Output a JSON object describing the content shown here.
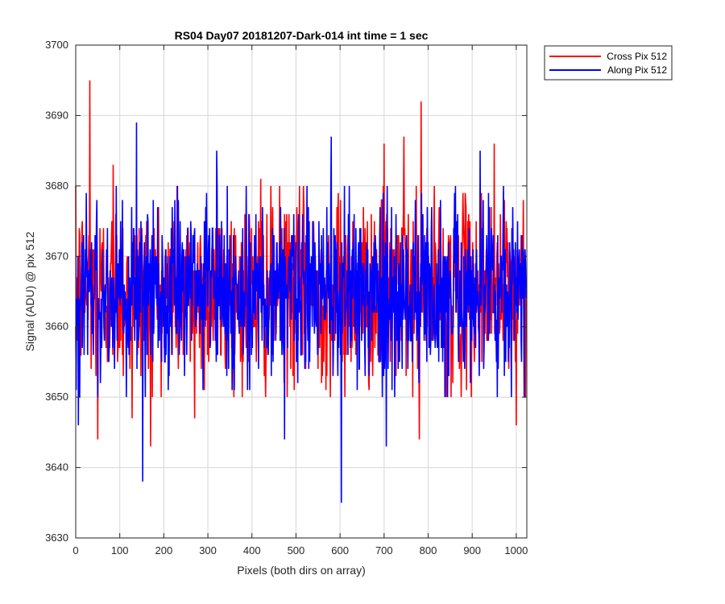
{
  "chart_data": {
    "type": "line",
    "title": "RS04 Day07 20181207-Dark-014 int time = 1 sec",
    "xlabel": "Pixels (both dirs on array)",
    "ylabel": "Signal (ADU) @ pix 512",
    "xlim": [
      0,
      1024
    ],
    "ylim": [
      3630,
      3700
    ],
    "xticks": [
      0,
      100,
      200,
      300,
      400,
      500,
      600,
      700,
      800,
      900,
      1000
    ],
    "yticks": [
      3630,
      3640,
      3650,
      3660,
      3670,
      3680,
      3690,
      3700
    ],
    "grid": true,
    "legend_position": "outside top-right",
    "series": [
      {
        "name": "Cross Pix 512",
        "color": "#ff0000",
        "n_points": 1024,
        "mean": 3665,
        "noise_range": [
          3652,
          3678
        ],
        "spikes": [
          {
            "x": 32,
            "y": 3695
          },
          {
            "x": 50,
            "y": 3644
          },
          {
            "x": 85,
            "y": 3683
          },
          {
            "x": 128,
            "y": 3647
          },
          {
            "x": 170,
            "y": 3643
          },
          {
            "x": 270,
            "y": 3647
          },
          {
            "x": 420,
            "y": 3681
          },
          {
            "x": 700,
            "y": 3686
          },
          {
            "x": 745,
            "y": 3687
          },
          {
            "x": 780,
            "y": 3644
          },
          {
            "x": 784,
            "y": 3692
          },
          {
            "x": 950,
            "y": 3686
          },
          {
            "x": 1000,
            "y": 3646
          }
        ]
      },
      {
        "name": "Along Pix 512",
        "color": "#0000ff",
        "n_points": 1024,
        "mean": 3665,
        "noise_range": [
          3652,
          3678
        ],
        "spikes": [
          {
            "x": 6,
            "y": 3646
          },
          {
            "x": 138,
            "y": 3689
          },
          {
            "x": 152,
            "y": 3638
          },
          {
            "x": 320,
            "y": 3685
          },
          {
            "x": 474,
            "y": 3644
          },
          {
            "x": 580,
            "y": 3687
          },
          {
            "x": 603,
            "y": 3635
          },
          {
            "x": 705,
            "y": 3643
          },
          {
            "x": 918,
            "y": 3685
          }
        ]
      }
    ]
  }
}
